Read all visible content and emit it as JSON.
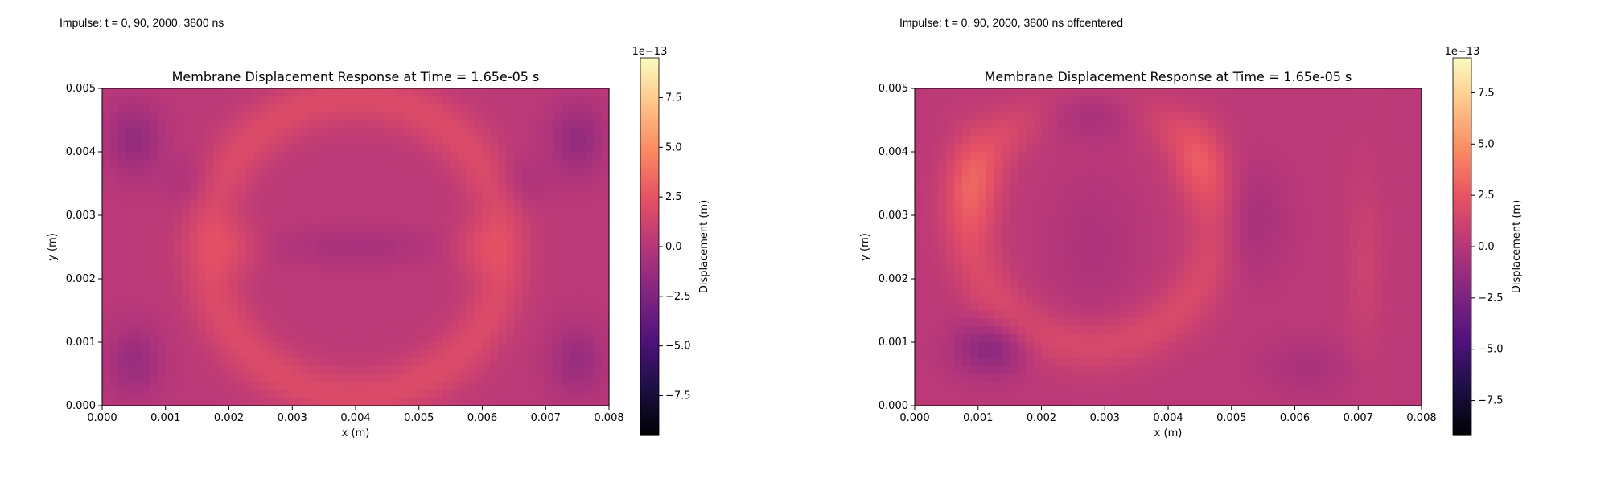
{
  "captions": [
    "Impulse: t = 0, 90, 2000, 3800 ns",
    "Impulse: t = 0, 90, 2000, 3800 ns offcentered"
  ],
  "colorscale": [
    "#000004",
    "#1c1044",
    "#4f127b",
    "#812581",
    "#b5367a",
    "#e55064",
    "#fb8761",
    "#fec287",
    "#fcfdbf"
  ],
  "chart_data": [
    {
      "type": "heatmap",
      "title": "Membrane Displacement Response at Time = 1.65e-05 s",
      "xlabel": "x (m)",
      "ylabel": "y (m)",
      "xlim": [
        0,
        0.008
      ],
      "ylim": [
        0,
        0.005
      ],
      "xticks": [
        "0.000",
        "0.001",
        "0.002",
        "0.003",
        "0.004",
        "0.005",
        "0.006",
        "0.007",
        "0.008"
      ],
      "yticks": [
        "0.000",
        "0.001",
        "0.002",
        "0.003",
        "0.004",
        "0.005"
      ],
      "colorbar": {
        "label": "Displacement (m)",
        "scale_label": "1e−13",
        "range": [
          -9.5,
          9.5
        ],
        "ticks": [
          "−7.5",
          "−5.0",
          "−2.5",
          "0.0",
          "2.5",
          "5.0",
          "7.5"
        ],
        "tick_values": [
          -7.5,
          -5.0,
          -2.5,
          0.0,
          2.5,
          5.0,
          7.5
        ]
      },
      "baseline": 0.3,
      "features": [
        {
          "kind": "ring",
          "cx": 0.004,
          "cy": 0.0025,
          "r": 0.00235,
          "width": 0.0003,
          "amp": 1.6
        },
        {
          "kind": "spot",
          "cx": 0.0021,
          "cy": 0.0025,
          "sx": 0.0003,
          "sy": 0.0003,
          "amp": 1.2
        },
        {
          "kind": "spot",
          "cx": 0.0059,
          "cy": 0.0025,
          "sx": 0.0003,
          "sy": 0.0003,
          "amp": 1.2
        },
        {
          "kind": "spot",
          "cx": 0.004,
          "cy": 0.0025,
          "sx": 0.0009,
          "sy": 0.0002,
          "amp": -0.9
        },
        {
          "kind": "spot",
          "cx": 0.0005,
          "cy": 0.0042,
          "sx": 0.0003,
          "sy": 0.0004,
          "amp": -1.8
        },
        {
          "kind": "spot",
          "cx": 0.0075,
          "cy": 0.0042,
          "sx": 0.0003,
          "sy": 0.0004,
          "amp": -1.8
        },
        {
          "kind": "spot",
          "cx": 0.0005,
          "cy": 0.0007,
          "sx": 0.0003,
          "sy": 0.0004,
          "amp": -1.6
        },
        {
          "kind": "spot",
          "cx": 0.0075,
          "cy": 0.0007,
          "sx": 0.0003,
          "sy": 0.0004,
          "amp": -1.6
        },
        {
          "kind": "spot",
          "cx": 0.0014,
          "cy": 0.0035,
          "sx": 0.0003,
          "sy": 0.0003,
          "amp": -0.8
        },
        {
          "kind": "spot",
          "cx": 0.0066,
          "cy": 0.0035,
          "sx": 0.0003,
          "sy": 0.0003,
          "amp": -0.8
        }
      ]
    },
    {
      "type": "heatmap",
      "title": "Membrane Displacement Response at Time = 1.65e-05 s",
      "xlabel": "x (m)",
      "ylabel": "y (m)",
      "xlim": [
        0,
        0.008
      ],
      "ylim": [
        0,
        0.005
      ],
      "xticks": [
        "0.000",
        "0.001",
        "0.002",
        "0.003",
        "0.004",
        "0.005",
        "0.006",
        "0.007",
        "0.008"
      ],
      "yticks": [
        "0.000",
        "0.001",
        "0.002",
        "0.003",
        "0.004",
        "0.005"
      ],
      "colorbar": {
        "label": "Displacement (m)",
        "scale_label": "1e−13",
        "range": [
          -9.2,
          9.2
        ],
        "ticks": [
          "−7.5",
          "−5.0",
          "−2.5",
          "0.0",
          "2.5",
          "5.0",
          "7.5"
        ],
        "tick_values": [
          -7.5,
          -5.0,
          -2.5,
          0.0,
          2.5,
          5.0,
          7.5
        ]
      },
      "baseline": 0.3,
      "features": [
        {
          "kind": "ring",
          "cx": 0.0028,
          "cy": 0.0029,
          "r": 0.00195,
          "width": 0.0003,
          "amp": 1.4
        },
        {
          "kind": "spot",
          "cx": 0.0009,
          "cy": 0.0035,
          "sx": 0.0003,
          "sy": 0.0006,
          "amp": 1.6
        },
        {
          "kind": "spot",
          "cx": 0.0045,
          "cy": 0.0038,
          "sx": 0.0003,
          "sy": 0.0005,
          "amp": 1.2
        },
        {
          "kind": "spot",
          "cx": 0.0012,
          "cy": 0.0009,
          "sx": 0.0004,
          "sy": 0.0003,
          "amp": -2.2
        },
        {
          "kind": "spot",
          "cx": 0.0028,
          "cy": 0.0047,
          "sx": 0.0007,
          "sy": 0.0003,
          "amp": -1.8
        },
        {
          "kind": "spot",
          "cx": 0.0053,
          "cy": 0.0029,
          "sx": 0.0004,
          "sy": 0.0006,
          "amp": -1.0
        },
        {
          "kind": "spot",
          "cx": 0.0028,
          "cy": 0.0025,
          "sx": 0.0005,
          "sy": 0.0008,
          "amp": -0.6
        },
        {
          "kind": "spot",
          "cx": 0.0071,
          "cy": 0.0022,
          "sx": 0.0002,
          "sy": 0.001,
          "amp": 0.8
        },
        {
          "kind": "spot",
          "cx": 0.0062,
          "cy": 0.0006,
          "sx": 0.0005,
          "sy": 0.0003,
          "amp": -0.8
        }
      ]
    }
  ]
}
